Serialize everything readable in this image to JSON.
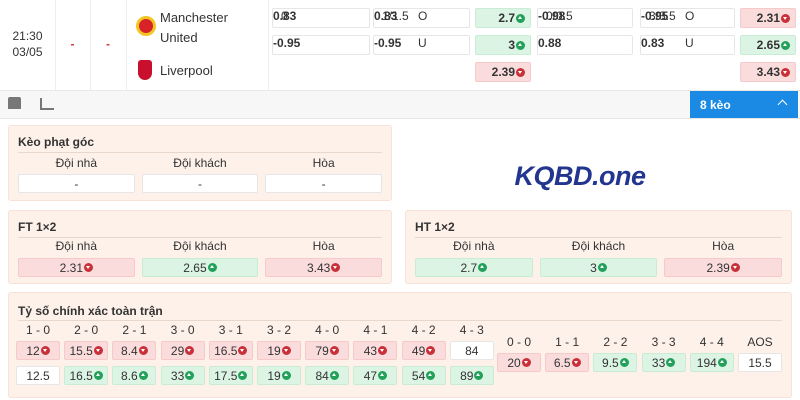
{
  "match": {
    "time": "21:30",
    "date": "03/05",
    "score_ft": "-",
    "score_ht": "-",
    "home": "Manchester United",
    "away": "Liverpool",
    "odds": [
      [
        {
          "line": "0",
          "value": "0.83"
        },
        {
          "line": "1/1.5",
          "side": "O",
          "value": "0.83"
        },
        {
          "value": "2.7",
          "trend": "up"
        },
        {
          "line": "0/0.5",
          "value": "-0.98"
        },
        {
          "line": "3/3.5",
          "side": "O",
          "value": "-0.95"
        },
        {
          "value": "2.31",
          "trend": "down"
        }
      ],
      [
        {
          "value": "-0.95"
        },
        {
          "side": "U",
          "value": "-0.95"
        },
        {
          "value": "3",
          "trend": "up"
        },
        {
          "value": "0.88"
        },
        {
          "side": "U",
          "value": "0.83"
        },
        {
          "value": "2.65",
          "trend": "up"
        }
      ],
      [
        null,
        null,
        {
          "value": "2.39",
          "trend": "down"
        },
        null,
        null,
        {
          "value": "3.43",
          "trend": "down"
        }
      ]
    ]
  },
  "toolbar": {
    "more_button": "8 kèo"
  },
  "corner": {
    "title": "Kèo phạt góc",
    "headers": [
      "Đội nhà",
      "Đội khách",
      "Hòa"
    ],
    "values": [
      {
        "value": "-"
      },
      {
        "value": "-"
      },
      {
        "value": "-"
      }
    ]
  },
  "logo": "KQBD.one",
  "ft_1x2": {
    "title": "FT 1×2",
    "headers": [
      "Đội nhà",
      "Đội khách",
      "Hòa"
    ],
    "values": [
      {
        "value": "2.31",
        "trend": "down"
      },
      {
        "value": "2.65",
        "trend": "up"
      },
      {
        "value": "3.43",
        "trend": "down"
      }
    ]
  },
  "ht_1x2": {
    "title": "HT 1×2",
    "headers": [
      "Đội nhà",
      "Đội khách",
      "Hòa"
    ],
    "values": [
      {
        "value": "2.7",
        "trend": "up"
      },
      {
        "value": "3",
        "trend": "up"
      },
      {
        "value": "2.39",
        "trend": "down"
      }
    ]
  },
  "correct_score": {
    "title": "Tỷ số chính xác toàn trận",
    "headers": [
      "1 - 0",
      "2 - 0",
      "2 - 1",
      "3 - 0",
      "3 - 1",
      "3 - 2",
      "4 - 0",
      "4 - 1",
      "4 - 2",
      "4 - 3"
    ],
    "rows": [
      [
        {
          "value": "12",
          "trend": "down"
        },
        {
          "value": "15.5",
          "trend": "down"
        },
        {
          "value": "8.4",
          "trend": "down"
        },
        {
          "value": "29",
          "trend": "down"
        },
        {
          "value": "16.5",
          "trend": "down"
        },
        {
          "value": "19",
          "trend": "down"
        },
        {
          "value": "79",
          "trend": "down"
        },
        {
          "value": "43",
          "trend": "down"
        },
        {
          "value": "49",
          "trend": "down"
        },
        {
          "value": "84"
        }
      ],
      [
        {
          "value": "12.5"
        },
        {
          "value": "16.5",
          "trend": "up"
        },
        {
          "value": "8.6",
          "trend": "up"
        },
        {
          "value": "33",
          "trend": "up"
        },
        {
          "value": "17.5",
          "trend": "up"
        },
        {
          "value": "19",
          "trend": "up"
        },
        {
          "value": "84",
          "trend": "up"
        },
        {
          "value": "47",
          "trend": "up"
        },
        {
          "value": "54",
          "trend": "up"
        },
        {
          "value": "89",
          "trend": "up"
        }
      ]
    ],
    "draw_headers": [
      "0 - 0",
      "1 - 1",
      "2 - 2",
      "3 - 3",
      "4 - 4",
      "AOS"
    ],
    "draw_values": [
      {
        "value": "20",
        "trend": "down"
      },
      {
        "value": "6.5",
        "trend": "down"
      },
      {
        "value": "9.5",
        "trend": "up"
      },
      {
        "value": "33",
        "trend": "up"
      },
      {
        "value": "194",
        "trend": "up"
      },
      {
        "value": "15.5"
      }
    ]
  }
}
